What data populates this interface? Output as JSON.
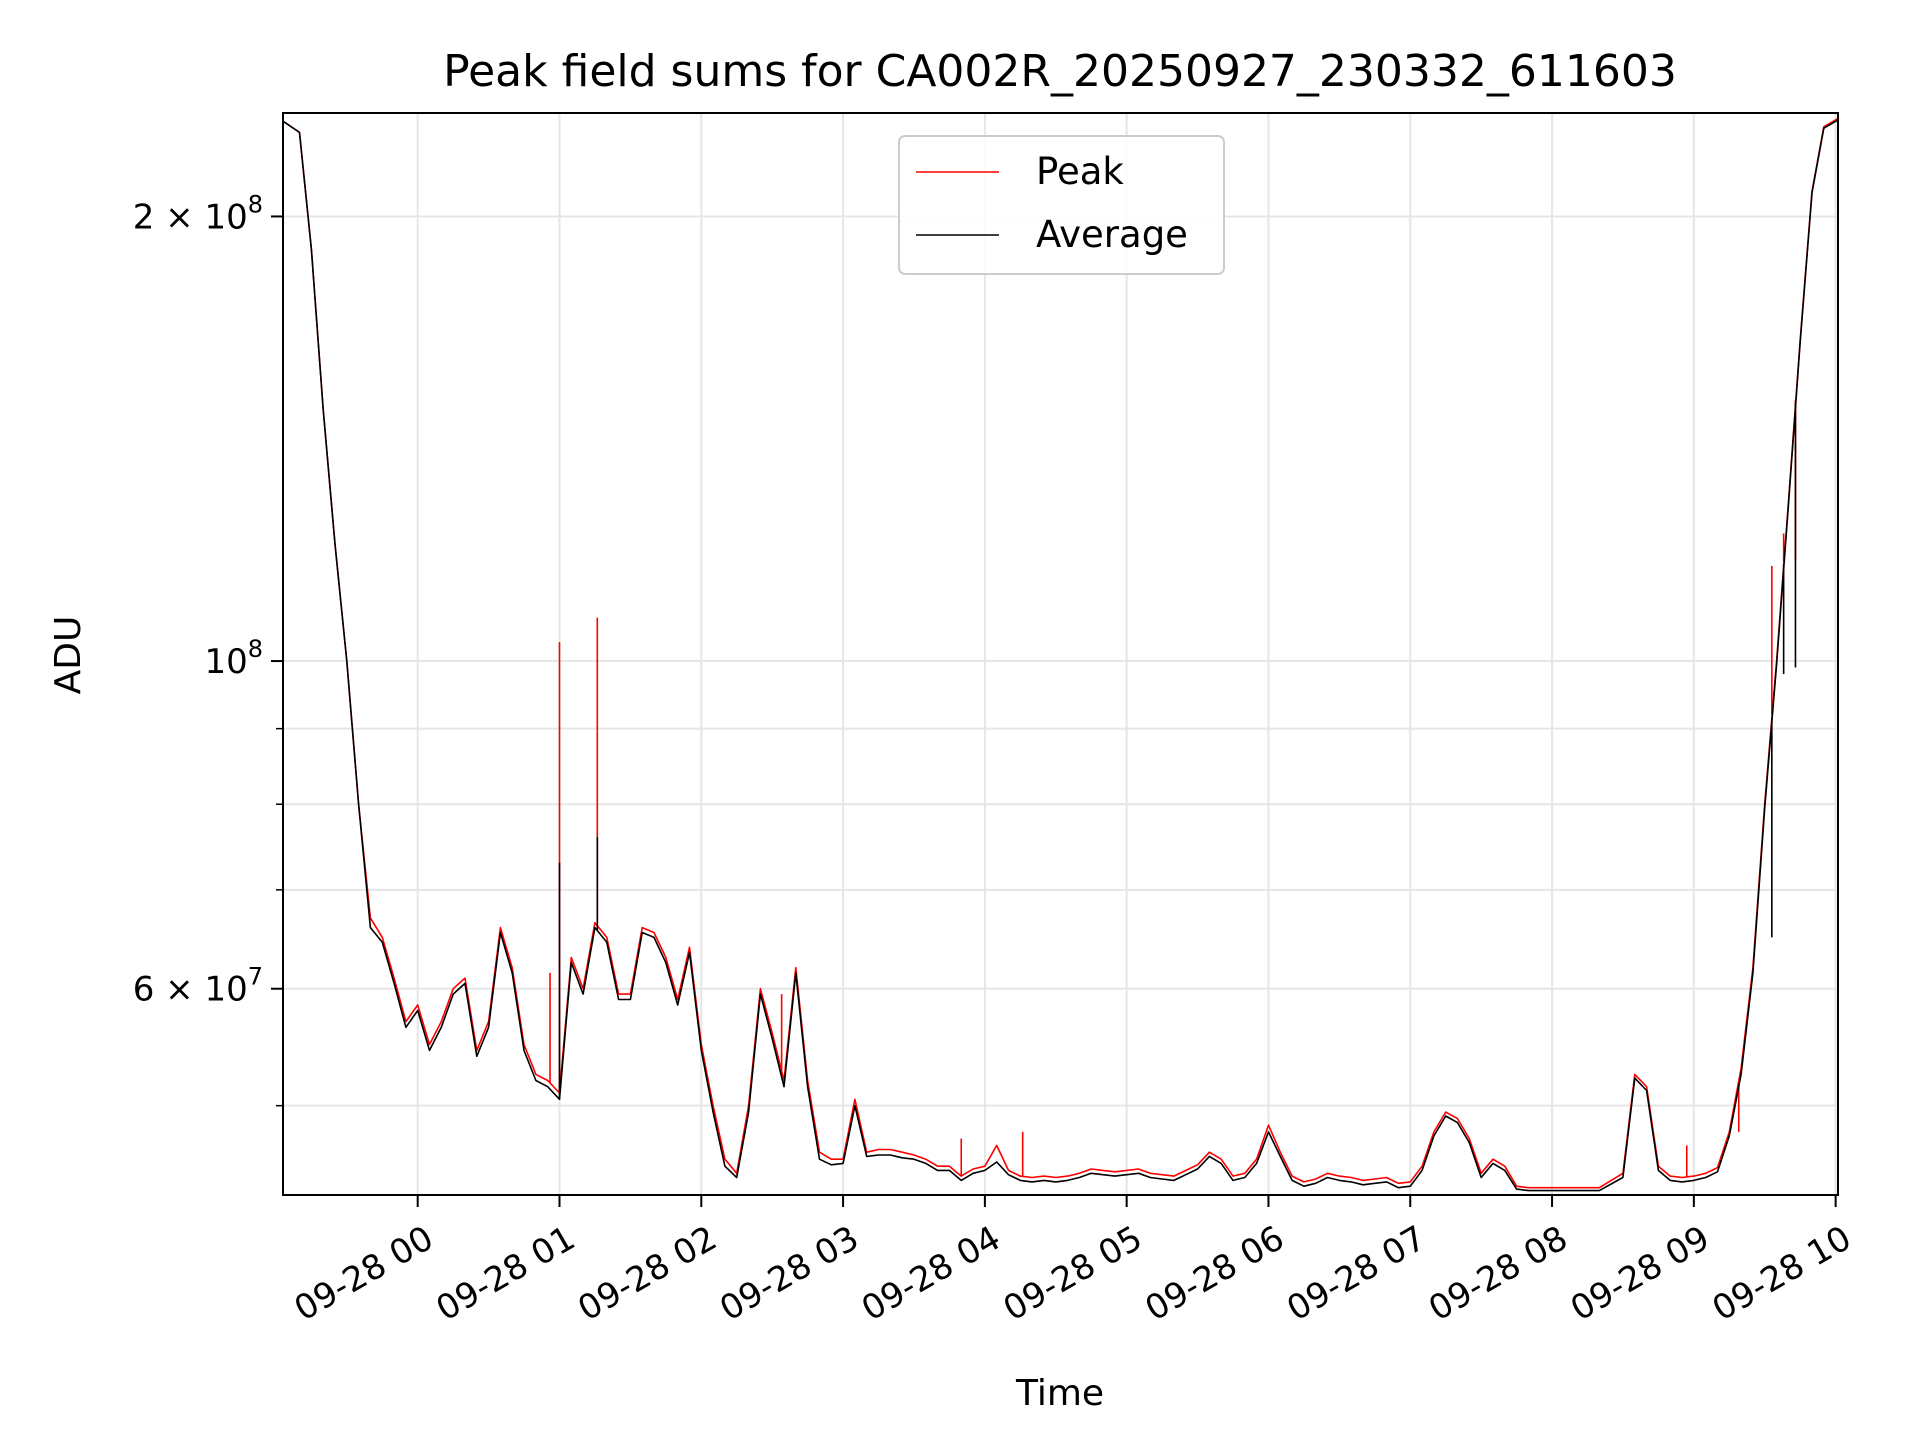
{
  "chart_data": {
    "type": "line",
    "title": "Peak field sums for CA002R_20250927_230332_611603",
    "xlabel": "Time",
    "ylabel": "ADU",
    "y_scale": "log",
    "ylim": [
      43500000,
      235000000
    ],
    "xlim": [
      "2025-09-27 23:03",
      "2025-09-28 10:01"
    ],
    "grid": true,
    "legend_position": "upper center",
    "x_tick_labels": [
      "09-28 00",
      "09-28 01",
      "09-28 02",
      "09-28 03",
      "09-28 04",
      "09-28 05",
      "09-28 06",
      "09-28 07",
      "09-28 08",
      "09-28 09",
      "09-28 10"
    ],
    "x_tick_values": [
      "2025-09-28 00:00",
      "2025-09-28 01:00",
      "2025-09-28 02:00",
      "2025-09-28 03:00",
      "2025-09-28 04:00",
      "2025-09-28 05:00",
      "2025-09-28 06:00",
      "2025-09-28 07:00",
      "2025-09-28 08:00",
      "2025-09-28 09:00",
      "2025-09-28 10:00"
    ],
    "y_major_ticks": [
      {
        "value": 200000000,
        "mantissa": "2",
        "times": "×",
        "base": "10",
        "exp": "8"
      },
      {
        "value": 100000000,
        "mantissa": "",
        "times": "",
        "base": "10",
        "exp": "8"
      },
      {
        "value": 60000000,
        "mantissa": "6",
        "times": "×",
        "base": "10",
        "exp": "7"
      }
    ],
    "y_minor_ticks": [
      50000000,
      70000000,
      80000000,
      90000000
    ],
    "x": [
      "2025-09-27 23:03",
      "2025-09-27 23:10",
      "2025-09-27 23:15",
      "2025-09-27 23:20",
      "2025-09-27 23:25",
      "2025-09-27 23:30",
      "2025-09-27 23:35",
      "2025-09-27 23:40",
      "2025-09-27 23:45",
      "2025-09-27 23:50",
      "2025-09-27 23:55",
      "2025-09-28 00:00",
      "2025-09-28 00:05",
      "2025-09-28 00:10",
      "2025-09-28 00:15",
      "2025-09-28 00:20",
      "2025-09-28 00:25",
      "2025-09-28 00:30",
      "2025-09-28 00:35",
      "2025-09-28 00:40",
      "2025-09-28 00:45",
      "2025-09-28 00:50",
      "2025-09-28 00:55",
      "2025-09-28 01:00",
      "2025-09-28 01:05",
      "2025-09-28 01:10",
      "2025-09-28 01:15",
      "2025-09-28 01:20",
      "2025-09-28 01:25",
      "2025-09-28 01:30",
      "2025-09-28 01:35",
      "2025-09-28 01:40",
      "2025-09-28 01:45",
      "2025-09-28 01:50",
      "2025-09-28 01:55",
      "2025-09-28 02:00",
      "2025-09-28 02:05",
      "2025-09-28 02:10",
      "2025-09-28 02:15",
      "2025-09-28 02:20",
      "2025-09-28 02:25",
      "2025-09-28 02:30",
      "2025-09-28 02:35",
      "2025-09-28 02:40",
      "2025-09-28 02:45",
      "2025-09-28 02:50",
      "2025-09-28 02:55",
      "2025-09-28 03:00",
      "2025-09-28 03:05",
      "2025-09-28 03:10",
      "2025-09-28 03:15",
      "2025-09-28 03:20",
      "2025-09-28 03:25",
      "2025-09-28 03:30",
      "2025-09-28 03:35",
      "2025-09-28 03:40",
      "2025-09-28 03:45",
      "2025-09-28 03:50",
      "2025-09-28 03:55",
      "2025-09-28 04:00",
      "2025-09-28 04:05",
      "2025-09-28 04:10",
      "2025-09-28 04:15",
      "2025-09-28 04:20",
      "2025-09-28 04:25",
      "2025-09-28 04:30",
      "2025-09-28 04:35",
      "2025-09-28 04:40",
      "2025-09-28 04:45",
      "2025-09-28 04:50",
      "2025-09-28 04:55",
      "2025-09-28 05:00",
      "2025-09-28 05:05",
      "2025-09-28 05:10",
      "2025-09-28 05:15",
      "2025-09-28 05:20",
      "2025-09-28 05:25",
      "2025-09-28 05:30",
      "2025-09-28 05:35",
      "2025-09-28 05:40",
      "2025-09-28 05:45",
      "2025-09-28 05:50",
      "2025-09-28 05:55",
      "2025-09-28 06:00",
      "2025-09-28 06:05",
      "2025-09-28 06:10",
      "2025-09-28 06:15",
      "2025-09-28 06:20",
      "2025-09-28 06:25",
      "2025-09-28 06:30",
      "2025-09-28 06:35",
      "2025-09-28 06:40",
      "2025-09-28 06:45",
      "2025-09-28 06:50",
      "2025-09-28 06:55",
      "2025-09-28 07:00",
      "2025-09-28 07:05",
      "2025-09-28 07:10",
      "2025-09-28 07:15",
      "2025-09-28 07:20",
      "2025-09-28 07:25",
      "2025-09-28 07:30",
      "2025-09-28 07:35",
      "2025-09-28 07:40",
      "2025-09-28 07:45",
      "2025-09-28 07:50",
      "2025-09-28 07:55",
      "2025-09-28 08:00",
      "2025-09-28 08:10",
      "2025-09-28 08:20",
      "2025-09-28 08:30",
      "2025-09-28 08:35",
      "2025-09-28 08:40",
      "2025-09-28 08:45",
      "2025-09-28 08:50",
      "2025-09-28 08:55",
      "2025-09-28 09:00",
      "2025-09-28 09:05",
      "2025-09-28 09:10",
      "2025-09-28 09:15",
      "2025-09-28 09:20",
      "2025-09-28 09:25",
      "2025-09-28 09:30",
      "2025-09-28 09:35",
      "2025-09-28 09:40",
      "2025-09-28 09:45",
      "2025-09-28 09:50",
      "2025-09-28 09:55",
      "2025-09-28 10:01"
    ],
    "series": [
      {
        "name": "Peak",
        "color": "#ff0000",
        "values": [
          232000000,
          228000000,
          190000000,
          148000000,
          120000000,
          100000000,
          80000000,
          67000000,
          65000000,
          61000000,
          57000000,
          58500000,
          55000000,
          57000000,
          60000000,
          61000000,
          54500000,
          57000000,
          66000000,
          62000000,
          55000000,
          52500000,
          52000000,
          51000000,
          63000000,
          60000000,
          66500000,
          65000000,
          59500000,
          59500000,
          66000000,
          65500000,
          63000000,
          59000000,
          64000000,
          55000000,
          50000000,
          46000000,
          45000000,
          50000000,
          60000000,
          56000000,
          52000000,
          62000000,
          52000000,
          46500000,
          46000000,
          46000000,
          50500000,
          46500000,
          46700000,
          46700000,
          46500000,
          46300000,
          46000000,
          45500000,
          45500000,
          44800000,
          45300000,
          45500000,
          47000000,
          45200000,
          44800000,
          44700000,
          44800000,
          44700000,
          44800000,
          45000000,
          45300000,
          45200000,
          45100000,
          45200000,
          45300000,
          45000000,
          44900000,
          44800000,
          45200000,
          45600000,
          46500000,
          46000000,
          44800000,
          45000000,
          46000000,
          48500000,
          46500000,
          44800000,
          44400000,
          44600000,
          45000000,
          44800000,
          44700000,
          44500000,
          44600000,
          44700000,
          44300000,
          44400000,
          45500000,
          48000000,
          49500000,
          49000000,
          47500000,
          45000000,
          46000000,
          45500000,
          44100000,
          44000000,
          44000000,
          44000000,
          44000000,
          44000000,
          45000000,
          52500000,
          51500000,
          45500000,
          44800000,
          44700000,
          44800000,
          45000000,
          45400000,
          48000000,
          53000000,
          62000000,
          80000000,
          100000000,
          128000000,
          165000000,
          208000000,
          230000000,
          233000000
        ]
      },
      {
        "name": "Average",
        "color": "#000000",
        "values": [
          232000000,
          228000000,
          190000000,
          148000000,
          120000000,
          100000000,
          80000000,
          66000000,
          64500000,
          60500000,
          56500000,
          58000000,
          54500000,
          56500000,
          59500000,
          60500000,
          54000000,
          56500000,
          65500000,
          61500000,
          54500000,
          52000000,
          51500000,
          50500000,
          62500000,
          59500000,
          66000000,
          64500000,
          59000000,
          59000000,
          65500000,
          65000000,
          62500000,
          58500000,
          63500000,
          54500000,
          49500000,
          45500000,
          44700000,
          49500000,
          59500000,
          55500000,
          51500000,
          61500000,
          51500000,
          46000000,
          45600000,
          45700000,
          50000000,
          46200000,
          46300000,
          46300000,
          46100000,
          46000000,
          45700000,
          45200000,
          45200000,
          44500000,
          45000000,
          45200000,
          45800000,
          44900000,
          44500000,
          44400000,
          44500000,
          44400000,
          44500000,
          44700000,
          45000000,
          44900000,
          44800000,
          44900000,
          45000000,
          44700000,
          44600000,
          44500000,
          44900000,
          45300000,
          46200000,
          45700000,
          44500000,
          44700000,
          45700000,
          48000000,
          46200000,
          44500000,
          44100000,
          44300000,
          44700000,
          44500000,
          44400000,
          44200000,
          44300000,
          44400000,
          44000000,
          44100000,
          45200000,
          47700000,
          49200000,
          48700000,
          47200000,
          44700000,
          45700000,
          45200000,
          43900000,
          43800000,
          43800000,
          43800000,
          43800000,
          43800000,
          44700000,
          52200000,
          51200000,
          45200000,
          44500000,
          44400000,
          44500000,
          44700000,
          45100000,
          47700000,
          52500000,
          61500000,
          79500000,
          99500000,
          127500000,
          164500000,
          207500000,
          229500000,
          232500000
        ]
      }
    ],
    "spikes": {
      "Peak": [
        [
          "2025-09-28 01:00",
          103000000
        ],
        [
          "2025-09-28 01:16",
          107000000
        ],
        [
          "2025-09-28 00:56",
          61500000
        ],
        [
          "2025-09-28 02:34",
          59500000
        ],
        [
          "2025-09-28 03:50",
          47500000
        ],
        [
          "2025-09-28 04:16",
          48000000
        ],
        [
          "2025-09-28 08:57",
          47000000
        ],
        [
          "2025-09-28 09:19",
          48000000
        ],
        [
          "2025-09-28 09:33",
          116000000
        ],
        [
          "2025-09-28 09:38",
          122000000
        ],
        [
          "2025-09-28 09:43",
          117000000
        ]
      ],
      "Average": [
        [
          "2025-09-28 01:00",
          73000000
        ],
        [
          "2025-09-28 01:16",
          76000000
        ],
        [
          "2025-09-28 09:33",
          65000000
        ],
        [
          "2025-09-28 09:38",
          98000000
        ],
        [
          "2025-09-28 09:43",
          99000000
        ]
      ]
    }
  }
}
